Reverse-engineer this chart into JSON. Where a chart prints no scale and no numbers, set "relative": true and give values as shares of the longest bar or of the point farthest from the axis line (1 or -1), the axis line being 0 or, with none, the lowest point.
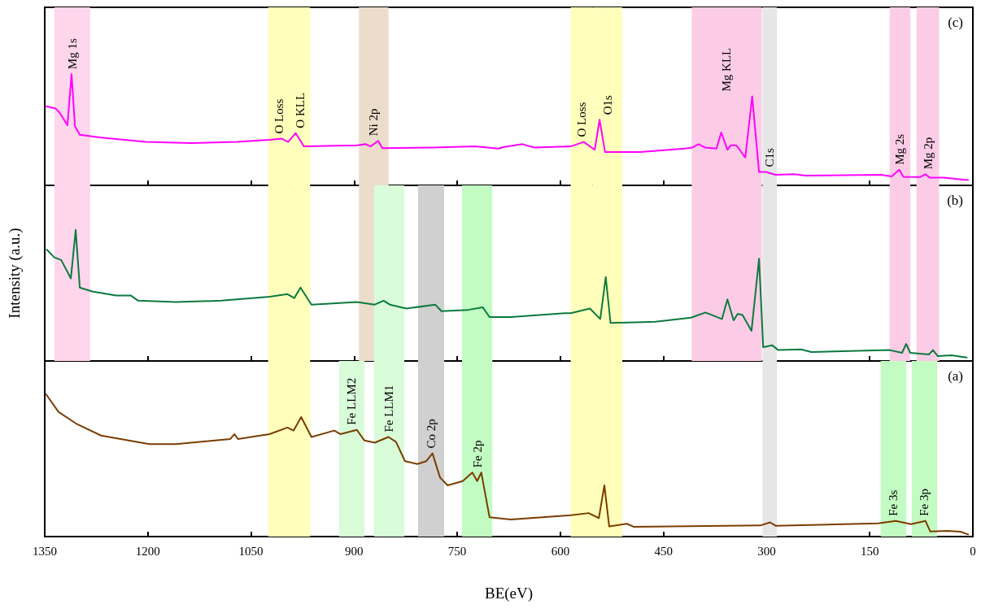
{
  "chart_data": [
    {
      "type": "line",
      "relative": true,
      "tick_labels": false,
      "xlim": [
        1350,
        0
      ],
      "xticks": [
        1350,
        1200,
        1050,
        900,
        750,
        600,
        450,
        300,
        150,
        0
      ],
      "series": [
        {
          "color": "#ff00ff",
          "x": [
            1348,
            1334,
            1328,
            1317,
            1311,
            1306,
            1299,
            1268,
            1203,
            1137,
            1071,
            1023,
            1005,
            996,
            985,
            973,
            896,
            883,
            876,
            865,
            859,
            786,
            725,
            690,
            682,
            655,
            638,
            585,
            566,
            550,
            543,
            535,
            484,
            419,
            408,
            399,
            390,
            373,
            366,
            357,
            352,
            344,
            331,
            321,
            311,
            301,
            287,
            260,
            243,
            134,
            118,
            107,
            101,
            77,
            69,
            63,
            42,
            11,
            7
          ],
          "values": [
            0.71,
            0.69,
            0.65,
            0.54,
            1.0,
            0.53,
            0.455,
            0.43,
            0.39,
            0.38,
            0.39,
            0.41,
            0.42,
            0.39,
            0.47,
            0.35,
            0.36,
            0.37,
            0.35,
            0.4,
            0.335,
            0.34,
            0.35,
            0.33,
            0.345,
            0.37,
            0.34,
            0.35,
            0.39,
            0.32,
            0.59,
            0.3,
            0.3,
            0.33,
            0.34,
            0.37,
            0.34,
            0.33,
            0.475,
            0.32,
            0.36,
            0.36,
            0.25,
            0.8,
            0.12,
            0.12,
            0.095,
            0.1,
            0.088,
            0.095,
            0.08,
            0.14,
            0.077,
            0.074,
            0.1,
            0.07,
            0.07,
            0.05,
            0.05
          ]
        }
      ],
      "bands": [
        {
          "axis": "x",
          "from": 1336,
          "to": 1284,
          "color": "#ffd6ec",
          "label": "Mg 1s"
        },
        {
          "axis": "x",
          "from": 1025,
          "to": 994,
          "color": "#ffffbb",
          "label": "O Loss"
        },
        {
          "axis": "x",
          "from": 994,
          "to": 964,
          "color": "#ffffbb",
          "label": "O KLL"
        },
        {
          "axis": "x",
          "from": 893,
          "to": 850,
          "color": "#ecdcca",
          "label": "Ni 2p"
        },
        {
          "axis": "x",
          "from": 585,
          "to": 553,
          "color": "#ffffbb",
          "label": "O Loss"
        },
        {
          "axis": "x",
          "from": 553,
          "to": 510,
          "color": "#ffffbb",
          "label": "O1s"
        },
        {
          "axis": "x",
          "from": 409,
          "to": 307,
          "color": "#fccce6",
          "label": "Mg KLL"
        },
        {
          "axis": "x",
          "from": 306,
          "to": 285,
          "color": "#e6e6e6",
          "label": "C1s"
        },
        {
          "axis": "x",
          "from": 121,
          "to": 91,
          "color": "#fccce6",
          "label": "Mg 2s"
        },
        {
          "axis": "x",
          "from": 82,
          "to": 49,
          "color": "#fccce6",
          "label": "Mg 2p"
        }
      ],
      "annotations": [
        "(c)"
      ]
    },
    {
      "type": "line",
      "relative": true,
      "tick_labels": false,
      "ylabel": "Intensity (a.u.)",
      "xlim": [
        1350,
        0
      ],
      "xticks": [
        1350,
        1200,
        1050,
        900,
        750,
        600,
        450,
        300,
        150,
        0
      ],
      "series": [
        {
          "color": "#0b7a3e",
          "x": [
            1347,
            1336,
            1326,
            1312,
            1305,
            1299,
            1281,
            1246,
            1225,
            1214,
            1159,
            1093,
            1023,
            997,
            987,
            978,
            962,
            896,
            870,
            857,
            848,
            824,
            782,
            773,
            734,
            713,
            703,
            672,
            594,
            585,
            557,
            542,
            534,
            527,
            462,
            410,
            389,
            379,
            365,
            357,
            348,
            342,
            335,
            322,
            311,
            305,
            292,
            283,
            250,
            235,
            121,
            103,
            97,
            91,
            64,
            58,
            51,
            31,
            9
          ],
          "values": [
            0.85,
            0.79,
            0.77,
            0.63,
            1.0,
            0.56,
            0.53,
            0.5,
            0.5,
            0.46,
            0.45,
            0.46,
            0.49,
            0.51,
            0.48,
            0.56,
            0.43,
            0.45,
            0.43,
            0.46,
            0.43,
            0.4,
            0.43,
            0.38,
            0.39,
            0.41,
            0.335,
            0.335,
            0.365,
            0.365,
            0.4,
            0.32,
            0.64,
            0.29,
            0.3,
            0.33,
            0.37,
            0.35,
            0.32,
            0.47,
            0.31,
            0.36,
            0.35,
            0.23,
            0.78,
            0.106,
            0.12,
            0.083,
            0.088,
            0.068,
            0.083,
            0.062,
            0.13,
            0.062,
            0.05,
            0.083,
            0.037,
            0.043,
            0.026
          ]
        }
      ],
      "bands": [
        {
          "axis": "x",
          "from": 1336,
          "to": 1284,
          "color": "#ffd6ec"
        },
        {
          "axis": "x",
          "from": 1025,
          "to": 964,
          "color": "#ffffbb"
        },
        {
          "axis": "x",
          "from": 893,
          "to": 850,
          "color": "#ecdcca"
        },
        {
          "axis": "x",
          "from": 871,
          "to": 827,
          "color": "#d9fcd9"
        },
        {
          "axis": "x",
          "from": 807,
          "to": 769,
          "color": "#d0d0d0"
        },
        {
          "axis": "x",
          "from": 743,
          "to": 699,
          "color": "#c2fcc2"
        },
        {
          "axis": "x",
          "from": 585,
          "to": 510,
          "color": "#ffffbb"
        },
        {
          "axis": "x",
          "from": 409,
          "to": 307,
          "color": "#fccce6"
        },
        {
          "axis": "x",
          "from": 306,
          "to": 285,
          "color": "#e6e6e6"
        },
        {
          "axis": "x",
          "from": 121,
          "to": 91,
          "color": "#fccce6"
        },
        {
          "axis": "x",
          "from": 82,
          "to": 49,
          "color": "#fccce6"
        }
      ],
      "annotations": [
        "(b)"
      ]
    },
    {
      "type": "line",
      "relative": true,
      "xlabel": "BE(eV)",
      "xlim": [
        1350,
        0
      ],
      "xticks": [
        1350,
        1200,
        1050,
        900,
        750,
        600,
        450,
        300,
        150,
        0
      ],
      "series": [
        {
          "color": "#7a3d00",
          "x": [
            1348,
            1330,
            1303,
            1268,
            1233,
            1198,
            1159,
            1115,
            1080,
            1074,
            1069,
            1023,
            997,
            988,
            977,
            962,
            929,
            920,
            896,
            885,
            870,
            850,
            839,
            826,
            808,
            795,
            786,
            775,
            764,
            742,
            728,
            721,
            715,
            703,
            672,
            585,
            559,
            544,
            536,
            529,
            503,
            493,
            309,
            295,
            287,
            138,
            112,
            90,
            69,
            62,
            37,
            18,
            7
          ],
          "values": [
            1.0,
            0.876,
            0.79,
            0.71,
            0.68,
            0.65,
            0.65,
            0.67,
            0.686,
            0.72,
            0.686,
            0.72,
            0.766,
            0.745,
            0.84,
            0.7,
            0.745,
            0.72,
            0.75,
            0.675,
            0.66,
            0.7,
            0.665,
            0.53,
            0.51,
            0.53,
            0.585,
            0.415,
            0.36,
            0.39,
            0.45,
            0.39,
            0.45,
            0.135,
            0.12,
            0.15,
            0.165,
            0.13,
            0.36,
            0.072,
            0.09,
            0.068,
            0.078,
            0.1,
            0.076,
            0.093,
            0.11,
            0.087,
            0.11,
            0.036,
            0.04,
            0.034,
            0.015
          ]
        }
      ],
      "bands": [
        {
          "axis": "x",
          "from": 1025,
          "to": 964,
          "color": "#ffffbb"
        },
        {
          "axis": "x",
          "from": 922,
          "to": 885,
          "color": "#d9fcd9",
          "label": "Fe LLM2"
        },
        {
          "axis": "x",
          "from": 871,
          "to": 827,
          "color": "#d9fcd9",
          "label": "Fe LLM1"
        },
        {
          "axis": "x",
          "from": 807,
          "to": 769,
          "color": "#d0d0d0",
          "label": "Co 2p"
        },
        {
          "axis": "x",
          "from": 743,
          "to": 699,
          "color": "#c2fcc2",
          "label": "Fe 2p"
        },
        {
          "axis": "x",
          "from": 585,
          "to": 510,
          "color": "#ffffbb"
        },
        {
          "axis": "x",
          "from": 306,
          "to": 285,
          "color": "#e6e6e6"
        },
        {
          "axis": "x",
          "from": 134,
          "to": 97,
          "color": "#c2fcc2",
          "label": "Fe 3s"
        },
        {
          "axis": "x",
          "from": 89,
          "to": 52,
          "color": "#c2fcc2",
          "label": "Fe 3p"
        }
      ],
      "annotations": [
        "(a)"
      ]
    }
  ]
}
